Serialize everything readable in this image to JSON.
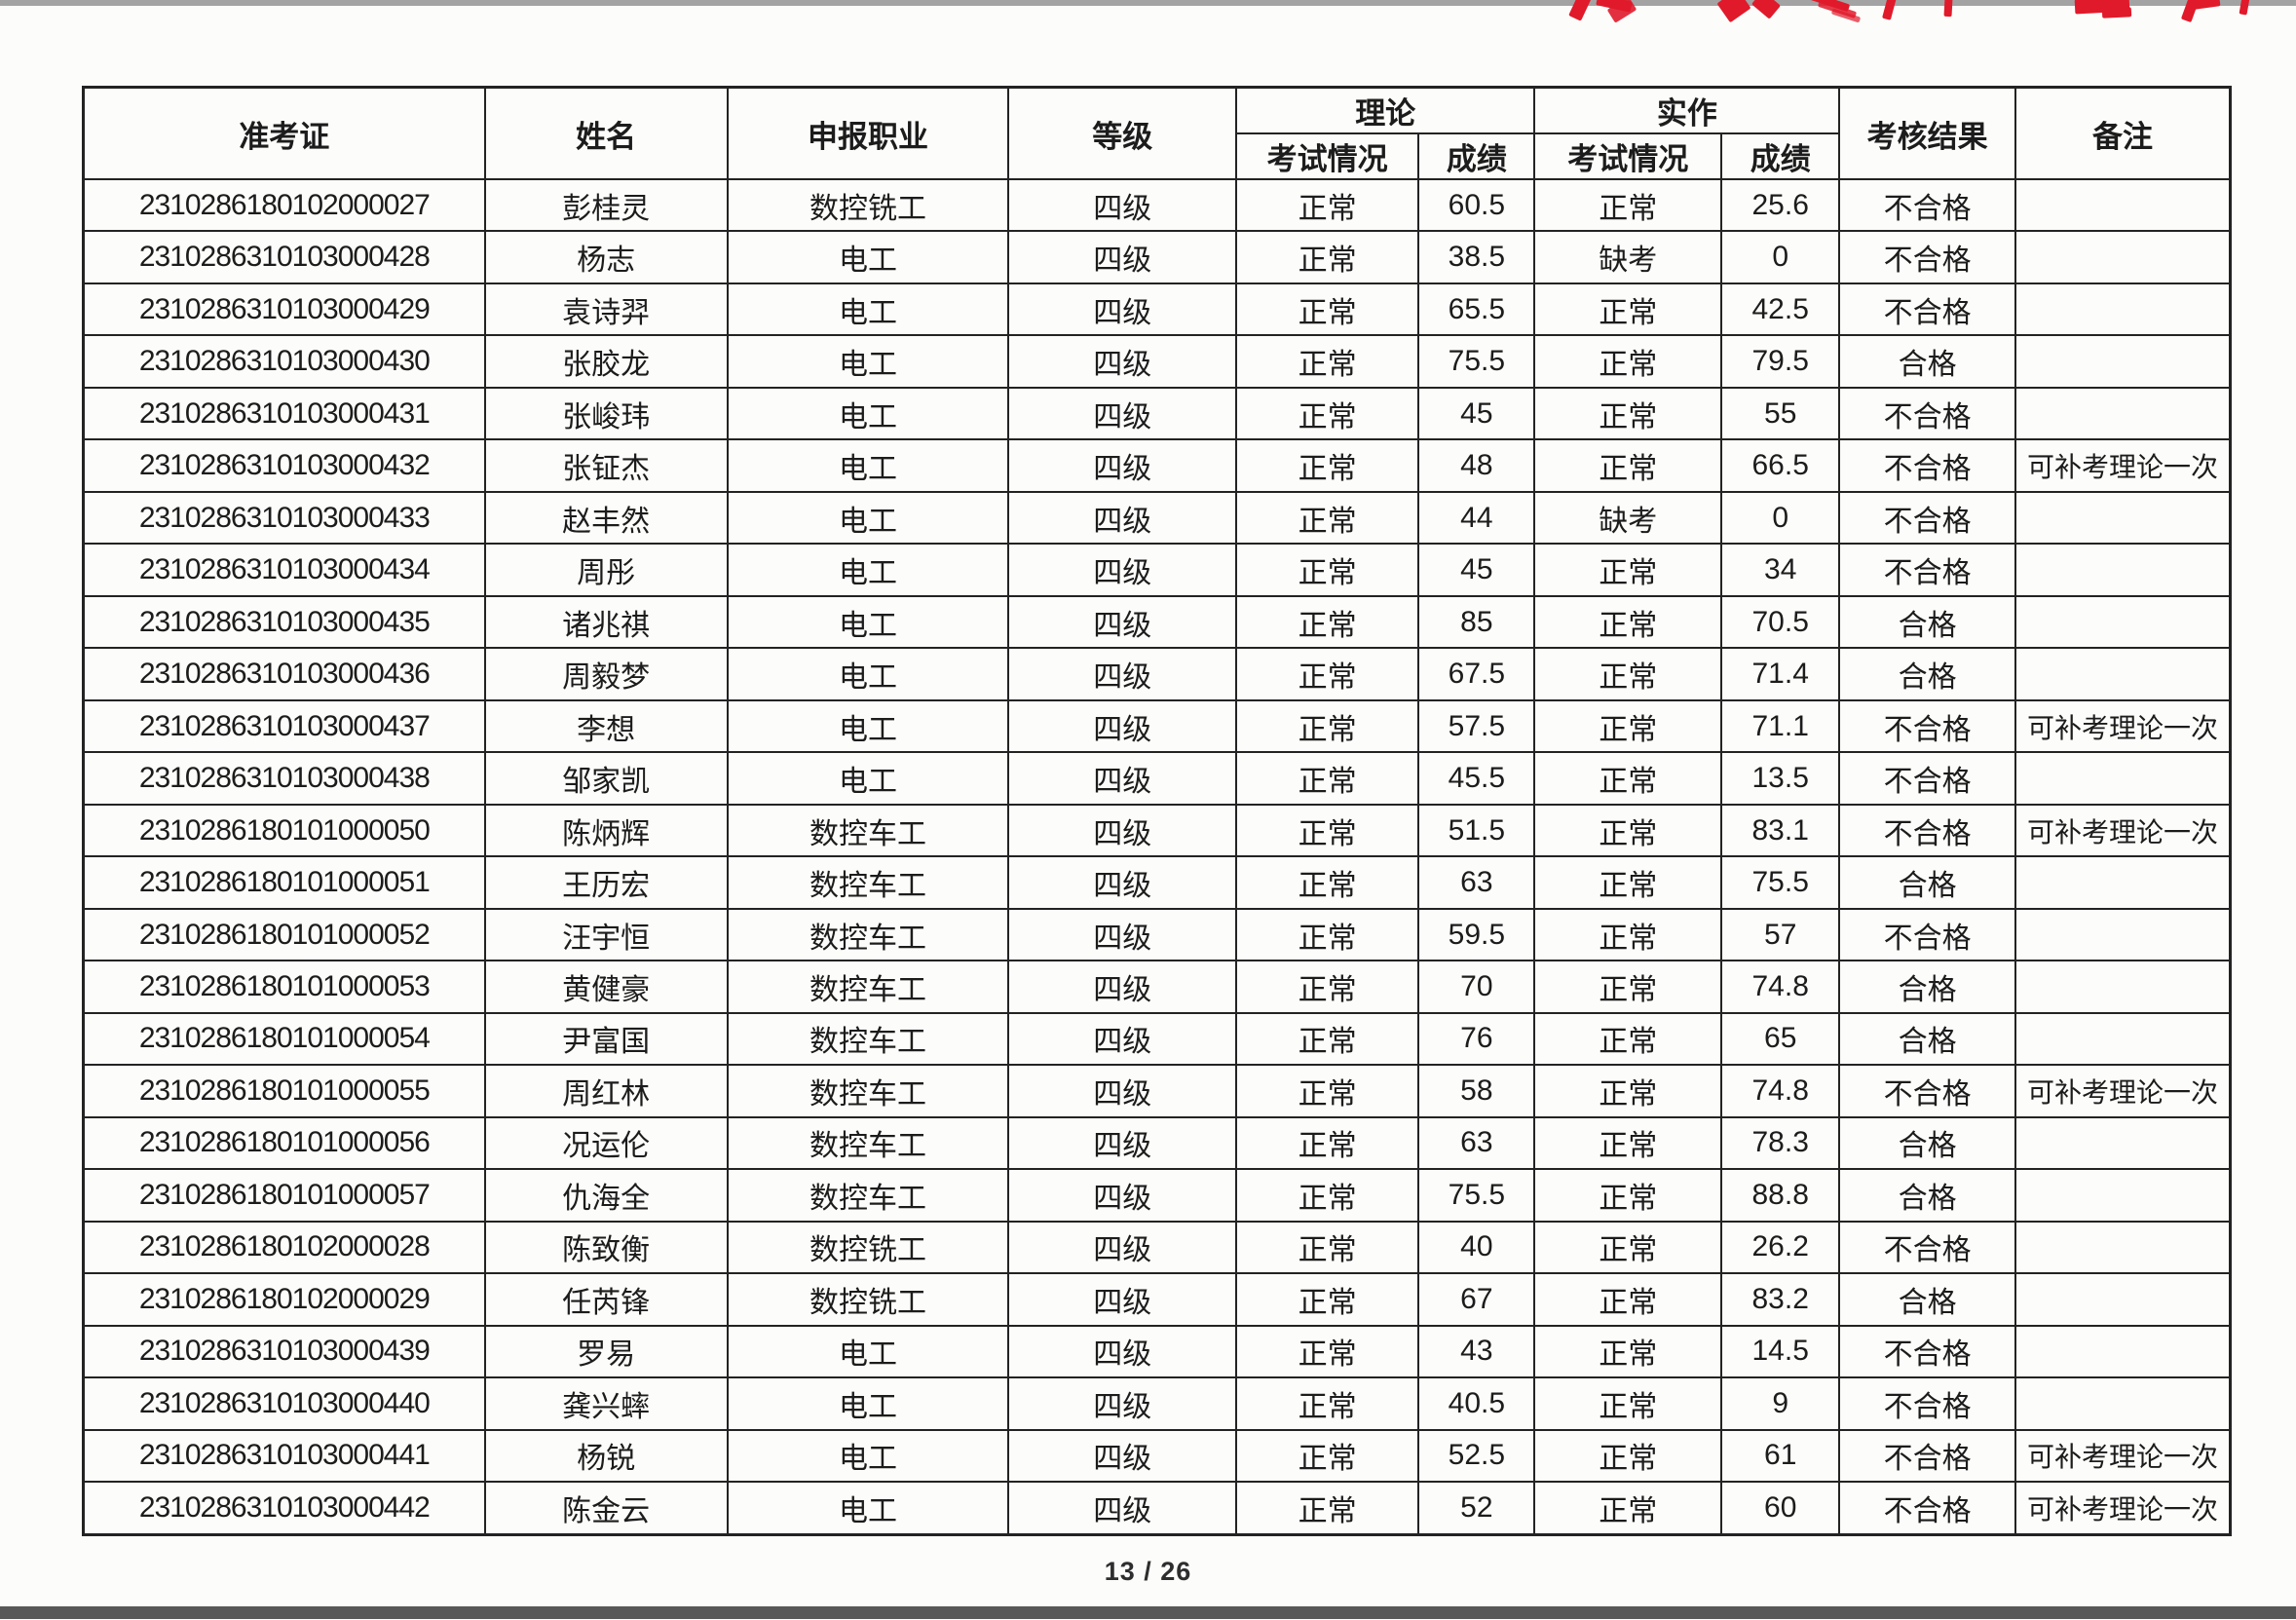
{
  "page": {
    "page_number": "13 / 26"
  },
  "stamp": {
    "color": "#e01a2b"
  },
  "table": {
    "headers": {
      "admission_ticket": "准考证",
      "name": "姓名",
      "occupation": "申报职业",
      "level": "等级",
      "theory": "理论",
      "practical": "实作",
      "exam_status": "考试情况",
      "score": "成绩",
      "result": "考核结果",
      "remarks": "备注"
    },
    "rows": [
      {
        "id": "2310286180102000027",
        "name": "彭桂灵",
        "occupation": "数控铣工",
        "level": "四级",
        "theory_status": "正常",
        "theory_score": "60.5",
        "practical_status": "正常",
        "practical_score": "25.6",
        "result": "不合格",
        "remarks": ""
      },
      {
        "id": "2310286310103000428",
        "name": "杨志",
        "occupation": "电工",
        "level": "四级",
        "theory_status": "正常",
        "theory_score": "38.5",
        "practical_status": "缺考",
        "practical_score": "0",
        "result": "不合格",
        "remarks": ""
      },
      {
        "id": "2310286310103000429",
        "name": "袁诗羿",
        "occupation": "电工",
        "level": "四级",
        "theory_status": "正常",
        "theory_score": "65.5",
        "practical_status": "正常",
        "practical_score": "42.5",
        "result": "不合格",
        "remarks": ""
      },
      {
        "id": "2310286310103000430",
        "name": "张胶龙",
        "occupation": "电工",
        "level": "四级",
        "theory_status": "正常",
        "theory_score": "75.5",
        "practical_status": "正常",
        "practical_score": "79.5",
        "result": "合格",
        "remarks": ""
      },
      {
        "id": "2310286310103000431",
        "name": "张峻玮",
        "occupation": "电工",
        "level": "四级",
        "theory_status": "正常",
        "theory_score": "45",
        "practical_status": "正常",
        "practical_score": "55",
        "result": "不合格",
        "remarks": ""
      },
      {
        "id": "2310286310103000432",
        "name": "张钲杰",
        "occupation": "电工",
        "level": "四级",
        "theory_status": "正常",
        "theory_score": "48",
        "practical_status": "正常",
        "practical_score": "66.5",
        "result": "不合格",
        "remarks": "可补考理论一次"
      },
      {
        "id": "2310286310103000433",
        "name": "赵丰然",
        "occupation": "电工",
        "level": "四级",
        "theory_status": "正常",
        "theory_score": "44",
        "practical_status": "缺考",
        "practical_score": "0",
        "result": "不合格",
        "remarks": ""
      },
      {
        "id": "2310286310103000434",
        "name": "周彤",
        "occupation": "电工",
        "level": "四级",
        "theory_status": "正常",
        "theory_score": "45",
        "practical_status": "正常",
        "practical_score": "34",
        "result": "不合格",
        "remarks": ""
      },
      {
        "id": "2310286310103000435",
        "name": "诸兆祺",
        "occupation": "电工",
        "level": "四级",
        "theory_status": "正常",
        "theory_score": "85",
        "practical_status": "正常",
        "practical_score": "70.5",
        "result": "合格",
        "remarks": ""
      },
      {
        "id": "2310286310103000436",
        "name": "周毅梦",
        "occupation": "电工",
        "level": "四级",
        "theory_status": "正常",
        "theory_score": "67.5",
        "practical_status": "正常",
        "practical_score": "71.4",
        "result": "合格",
        "remarks": ""
      },
      {
        "id": "2310286310103000437",
        "name": "李想",
        "occupation": "电工",
        "level": "四级",
        "theory_status": "正常",
        "theory_score": "57.5",
        "practical_status": "正常",
        "practical_score": "71.1",
        "result": "不合格",
        "remarks": "可补考理论一次"
      },
      {
        "id": "2310286310103000438",
        "name": "邹家凯",
        "occupation": "电工",
        "level": "四级",
        "theory_status": "正常",
        "theory_score": "45.5",
        "practical_status": "正常",
        "practical_score": "13.5",
        "result": "不合格",
        "remarks": ""
      },
      {
        "id": "2310286180101000050",
        "name": "陈炳辉",
        "occupation": "数控车工",
        "level": "四级",
        "theory_status": "正常",
        "theory_score": "51.5",
        "practical_status": "正常",
        "practical_score": "83.1",
        "result": "不合格",
        "remarks": "可补考理论一次"
      },
      {
        "id": "2310286180101000051",
        "name": "王历宏",
        "occupation": "数控车工",
        "level": "四级",
        "theory_status": "正常",
        "theory_score": "63",
        "practical_status": "正常",
        "practical_score": "75.5",
        "result": "合格",
        "remarks": ""
      },
      {
        "id": "2310286180101000052",
        "name": "汪宇恒",
        "occupation": "数控车工",
        "level": "四级",
        "theory_status": "正常",
        "theory_score": "59.5",
        "practical_status": "正常",
        "practical_score": "57",
        "result": "不合格",
        "remarks": ""
      },
      {
        "id": "2310286180101000053",
        "name": "黄健豪",
        "occupation": "数控车工",
        "level": "四级",
        "theory_status": "正常",
        "theory_score": "70",
        "practical_status": "正常",
        "practical_score": "74.8",
        "result": "合格",
        "remarks": ""
      },
      {
        "id": "2310286180101000054",
        "name": "尹富国",
        "occupation": "数控车工",
        "level": "四级",
        "theory_status": "正常",
        "theory_score": "76",
        "practical_status": "正常",
        "practical_score": "65",
        "result": "合格",
        "remarks": ""
      },
      {
        "id": "2310286180101000055",
        "name": "周红林",
        "occupation": "数控车工",
        "level": "四级",
        "theory_status": "正常",
        "theory_score": "58",
        "practical_status": "正常",
        "practical_score": "74.8",
        "result": "不合格",
        "remarks": "可补考理论一次"
      },
      {
        "id": "2310286180101000056",
        "name": "况运伦",
        "occupation": "数控车工",
        "level": "四级",
        "theory_status": "正常",
        "theory_score": "63",
        "practical_status": "正常",
        "practical_score": "78.3",
        "result": "合格",
        "remarks": ""
      },
      {
        "id": "2310286180101000057",
        "name": "仇海全",
        "occupation": "数控车工",
        "level": "四级",
        "theory_status": "正常",
        "theory_score": "75.5",
        "practical_status": "正常",
        "practical_score": "88.8",
        "result": "合格",
        "remarks": ""
      },
      {
        "id": "2310286180102000028",
        "name": "陈致衡",
        "occupation": "数控铣工",
        "level": "四级",
        "theory_status": "正常",
        "theory_score": "40",
        "practical_status": "正常",
        "practical_score": "26.2",
        "result": "不合格",
        "remarks": ""
      },
      {
        "id": "2310286180102000029",
        "name": "任芮锋",
        "occupation": "数控铣工",
        "level": "四级",
        "theory_status": "正常",
        "theory_score": "67",
        "practical_status": "正常",
        "practical_score": "83.2",
        "result": "合格",
        "remarks": ""
      },
      {
        "id": "2310286310103000439",
        "name": "罗易",
        "occupation": "电工",
        "level": "四级",
        "theory_status": "正常",
        "theory_score": "43",
        "practical_status": "正常",
        "practical_score": "14.5",
        "result": "不合格",
        "remarks": ""
      },
      {
        "id": "2310286310103000440",
        "name": "龚兴蟀",
        "occupation": "电工",
        "level": "四级",
        "theory_status": "正常",
        "theory_score": "40.5",
        "practical_status": "正常",
        "practical_score": "9",
        "result": "不合格",
        "remarks": ""
      },
      {
        "id": "2310286310103000441",
        "name": "杨锐",
        "occupation": "电工",
        "level": "四级",
        "theory_status": "正常",
        "theory_score": "52.5",
        "practical_status": "正常",
        "practical_score": "61",
        "result": "不合格",
        "remarks": "可补考理论一次"
      },
      {
        "id": "2310286310103000442",
        "name": "陈金云",
        "occupation": "电工",
        "level": "四级",
        "theory_status": "正常",
        "theory_score": "52",
        "practical_status": "正常",
        "practical_score": "60",
        "result": "不合格",
        "remarks": "可补考理论一次"
      }
    ]
  }
}
